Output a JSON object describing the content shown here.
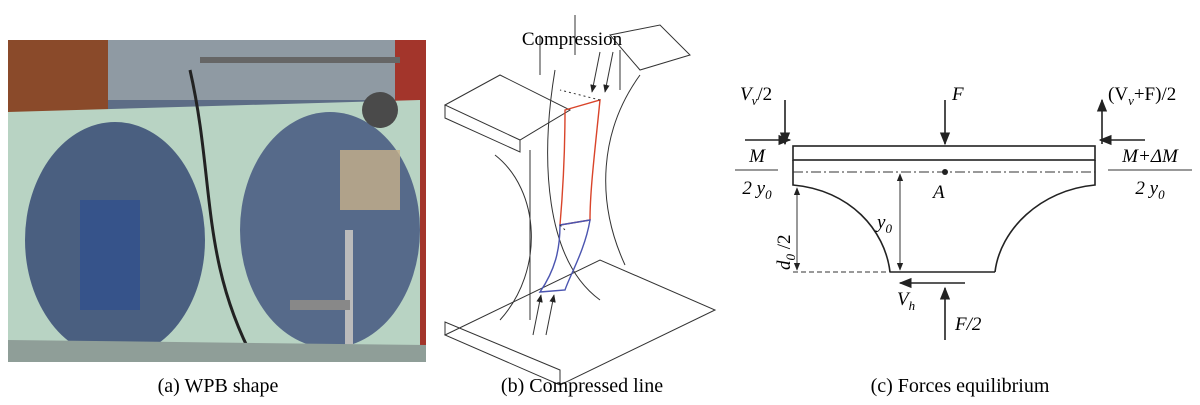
{
  "panels": [
    {
      "caption": "(a) WPB shape"
    },
    {
      "caption": "(b) Compressed line",
      "label": "Compression"
    },
    {
      "caption": "(c) Forces equilibrium"
    }
  ],
  "diagram": {
    "vv2": [
      "V",
      "v",
      "/2"
    ],
    "f": "F",
    "vvf2": [
      "(V",
      "v",
      "+F)/2"
    ],
    "m_num": "M",
    "m_den": [
      "2 y",
      "0"
    ],
    "a": "A",
    "mdm_num": "M+ΔM",
    "mdm_den": [
      "2 y",
      "0"
    ],
    "y0": [
      "y",
      "0"
    ],
    "d02": [
      "d",
      "0",
      " /2"
    ],
    "vh": [
      "V",
      "h"
    ],
    "f2": "F/2"
  }
}
